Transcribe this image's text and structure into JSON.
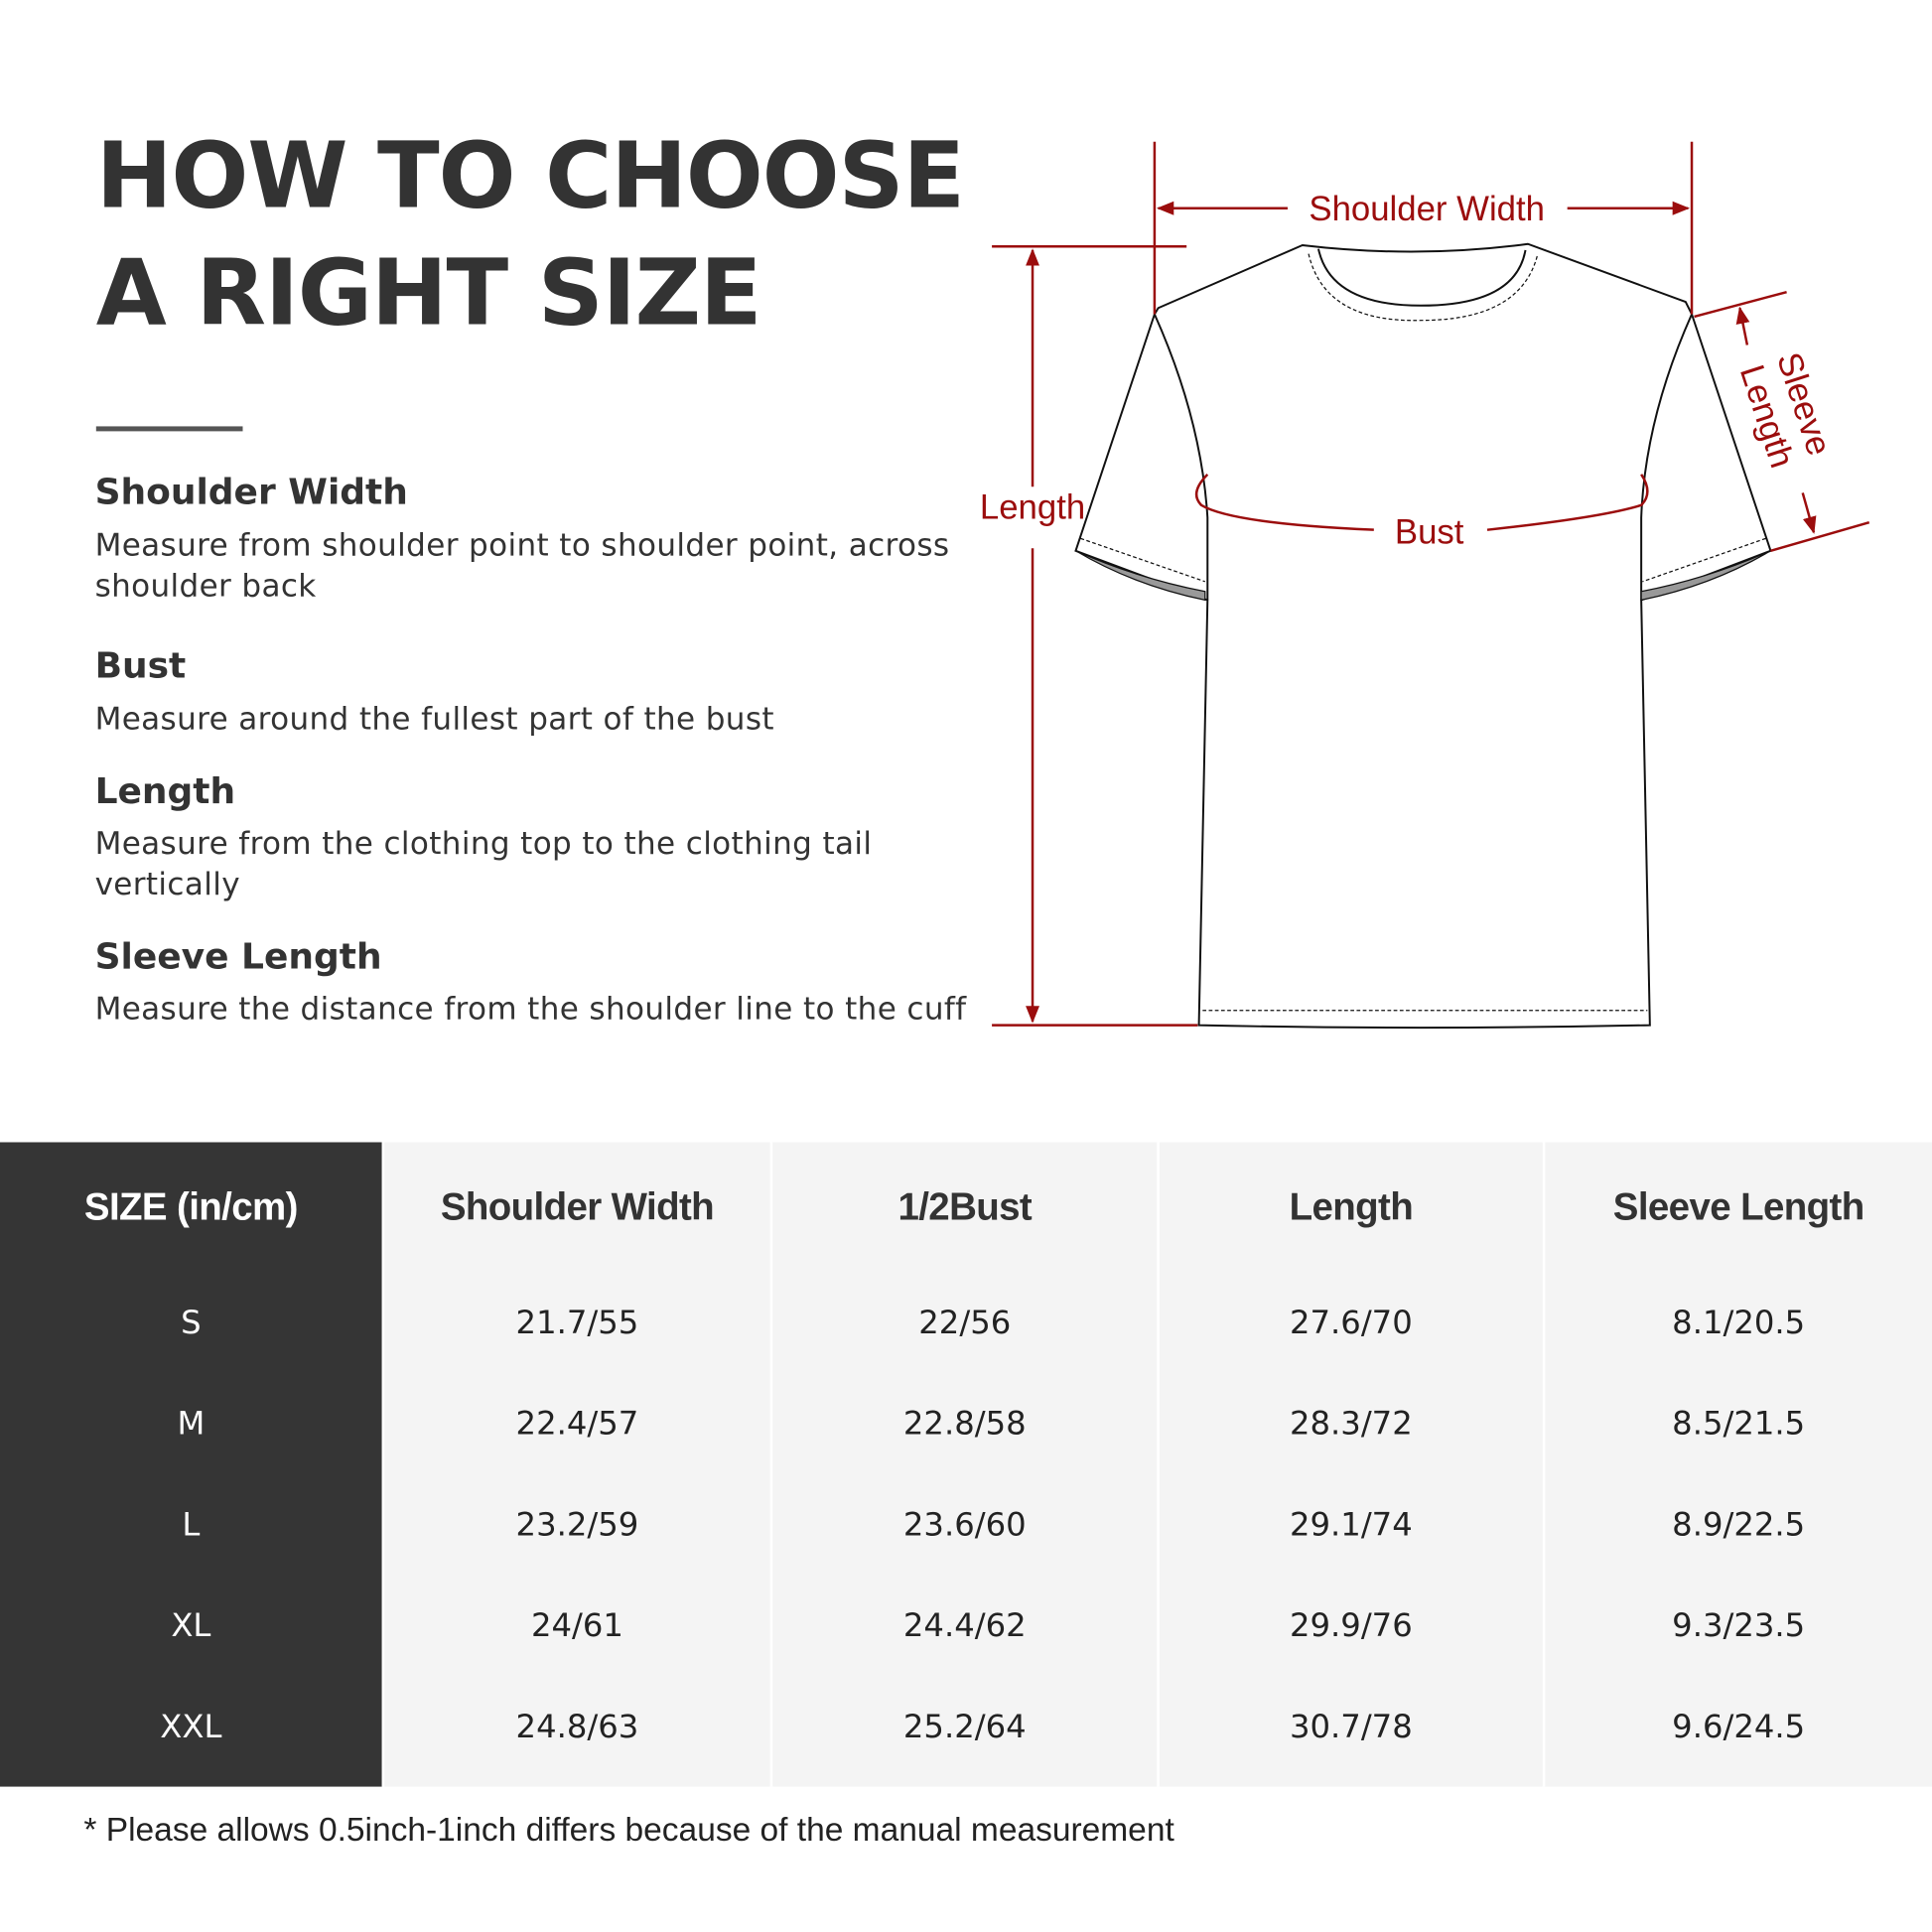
{
  "title": {
    "line1": "HOW TO CHOOSE",
    "line2": "A RIGHT SIZE"
  },
  "sections": [
    {
      "heading": "Shoulder Width",
      "body": "Measure from shoulder point to shoulder point, across shoulder back"
    },
    {
      "heading": "Bust",
      "body": "Measure around the fullest part of the bust"
    },
    {
      "heading": "Length",
      "body": "Measure from the clothing top to the clothing tail vertically"
    },
    {
      "heading": "Sleeve Length",
      "body": "Measure the distance from the shoulder line to the cuff"
    }
  ],
  "diagram": {
    "labels": {
      "shoulder": "Shoulder Width",
      "length": "Length",
      "bust": "Bust",
      "sleeve1": "Sleeve",
      "sleeve2": "Length"
    },
    "accent_color": "#9b0d0d"
  },
  "table": {
    "headers": [
      "SIZE  (in/cm)",
      "Shoulder Width",
      "1/2Bust",
      "Length",
      "Sleeve Length"
    ],
    "columns": [
      [
        "S",
        "M",
        "L",
        "XL",
        "XXL"
      ],
      [
        "21.7/55",
        "22.4/57",
        "23.2/59",
        "24/61",
        "24.8/63"
      ],
      [
        "22/56",
        "22.8/58",
        "23.6/60",
        "24.4/62",
        "25.2/64"
      ],
      [
        "27.6/70",
        "28.3/72",
        "29.1/74",
        "29.9/76",
        "30.7/78"
      ],
      [
        "8.1/20.5",
        "8.5/21.5",
        "8.9/22.5",
        "9.3/23.5",
        "9.6/24.5"
      ]
    ]
  },
  "footnote": "* Please allows 0.5inch-1inch differs because of the  manual measurement"
}
